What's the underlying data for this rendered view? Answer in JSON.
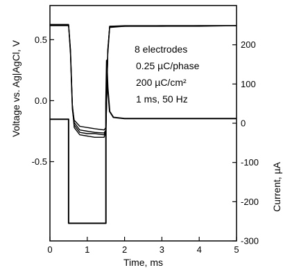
{
  "chart_data": {
    "type": "line",
    "xlabel": "Time, ms",
    "ylabel_left": "Voltage vs. Ag|AgCl, V",
    "ylabel_right": "Current, µA",
    "xlim": [
      0,
      5
    ],
    "ylim_left": [
      -1.15,
      0.78
    ],
    "ylim_right": [
      -300,
      300
    ],
    "x_ticks": [
      0,
      1,
      2,
      3,
      4,
      5
    ],
    "y_left_ticks": [
      0.5,
      0.0,
      -0.5
    ],
    "y_left_tick_labels": [
      "0.5",
      "0.0",
      "-0.5"
    ],
    "y_right_ticks": [
      200,
      100,
      0,
      -100,
      -200,
      -300
    ],
    "y_right_tick_labels": [
      "200",
      "100",
      "0",
      "-100",
      "-200",
      "-300"
    ],
    "annotations": [
      "8 electrodes",
      "0.25 µC/phase",
      "200 µC/cm²",
      "1 ms, 50 Hz"
    ],
    "series": [
      {
        "axis": "left",
        "color": "#000000",
        "x": [
          0,
          0.5,
          0.55,
          0.6,
          0.65,
          0.8,
          1.0,
          1.2,
          1.45,
          1.5,
          1.55,
          1.6,
          2,
          3,
          4,
          5
        ],
        "y": [
          0.62,
          0.62,
          0.4,
          -0.05,
          -0.16,
          -0.21,
          -0.22,
          -0.23,
          -0.24,
          -0.22,
          0.4,
          0.61,
          0.61,
          0.615,
          0.615,
          0.615
        ]
      },
      {
        "axis": "left",
        "color": "#000000",
        "x": [
          0,
          0.5,
          0.55,
          0.6,
          0.65,
          0.8,
          1.0,
          1.2,
          1.45,
          1.5,
          1.55,
          1.6,
          2,
          3,
          4,
          5
        ],
        "y": [
          0.625,
          0.625,
          0.42,
          -0.03,
          -0.18,
          -0.24,
          -0.25,
          -0.26,
          -0.265,
          -0.24,
          0.42,
          0.605,
          0.61,
          0.61,
          0.615,
          0.615
        ]
      },
      {
        "axis": "left",
        "color": "#000000",
        "x": [
          0,
          0.5,
          0.55,
          0.6,
          0.65,
          0.8,
          1.0,
          1.2,
          1.45,
          1.5,
          1.55,
          1.6,
          2,
          3,
          4,
          5
        ],
        "y": [
          0.62,
          0.62,
          0.38,
          -0.07,
          -0.2,
          -0.26,
          -0.27,
          -0.27,
          -0.28,
          -0.25,
          0.38,
          0.6,
          0.61,
          0.61,
          0.61,
          0.615
        ]
      },
      {
        "axis": "left",
        "color": "#000000",
        "x": [
          0,
          0.5,
          0.55,
          0.6,
          0.65,
          0.8,
          1.0,
          1.2,
          1.45,
          1.5,
          1.55,
          1.6,
          2,
          3,
          4,
          5
        ],
        "y": [
          0.615,
          0.615,
          0.41,
          -0.04,
          -0.22,
          -0.28,
          -0.29,
          -0.3,
          -0.3,
          -0.26,
          0.41,
          0.61,
          0.615,
          0.615,
          0.615,
          0.615
        ]
      },
      {
        "axis": "right",
        "color": "#000000",
        "x": [
          0,
          0.5,
          0.5,
          1.5,
          1.5,
          1.52,
          1.55,
          1.6,
          1.7,
          2,
          3,
          4,
          5
        ],
        "y": [
          10,
          10,
          -255,
          -255,
          50,
          160,
          90,
          30,
          15,
          12,
          12,
          12,
          12
        ]
      }
    ]
  }
}
